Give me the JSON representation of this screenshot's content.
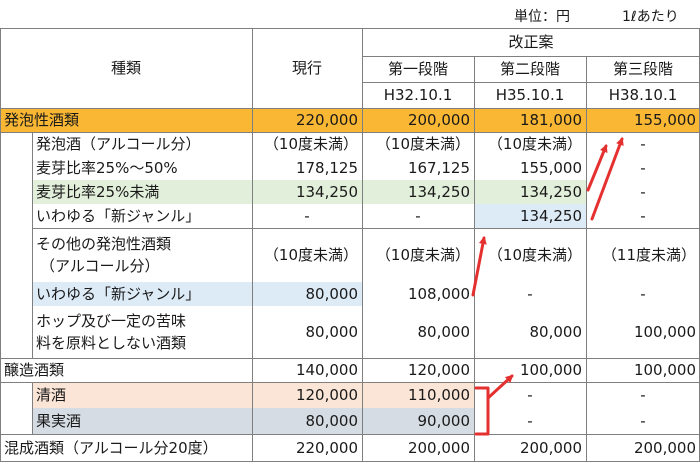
{
  "unit": {
    "label": "単位：円",
    "per": "1ℓあたり"
  },
  "header": {
    "type": "種類",
    "current": "現行",
    "proposal": "改正案",
    "stages": [
      "第一段階",
      "第二段階",
      "第三段階"
    ],
    "dates": [
      "H32.10.1",
      "H35.10.1",
      "H38.10.1"
    ]
  },
  "rows": {
    "happoseisyurui": {
      "name": "発泡性酒類",
      "v": [
        "220,000",
        "200,000",
        "181,000",
        "155,000"
      ]
    },
    "happoshu": {
      "name": "発泡酒（アルコール分）",
      "v": [
        "（10度未満）",
        "（10度未満）",
        "（10度未満）",
        "-"
      ]
    },
    "bakuga_25_50": {
      "name": "麦芽比率25%～50%",
      "v": [
        "178,125",
        "167,125",
        "155,000",
        "-"
      ]
    },
    "bakuga_under25": {
      "name": "麦芽比率25%未満",
      "v": [
        "134,250",
        "134,250",
        "134,250",
        "-"
      ]
    },
    "shin_genre_1": {
      "name": "いわゆる「新ジャンル」",
      "v": [
        "-",
        "-",
        "134,250",
        "-"
      ]
    },
    "sonota": {
      "name1": "その他の発泡性酒類",
      "name2": "（アルコール分）",
      "v": [
        "（10度未満）",
        "（10度未満）",
        "（10度未満）",
        "（11度未満）"
      ]
    },
    "shin_genre_2": {
      "name": "いわゆる「新ジャンル」",
      "v": [
        "80,000",
        "108,000",
        "-",
        "-"
      ]
    },
    "hop": {
      "name1": "ホップ及び一定の苦味",
      "name2": "料を原料としない酒類",
      "v": [
        "80,000",
        "80,000",
        "80,000",
        "100,000"
      ]
    },
    "jozo": {
      "name": "醸造酒類",
      "v": [
        "140,000",
        "120,000",
        "100,000",
        "100,000"
      ]
    },
    "seishu": {
      "name": "清酒",
      "v": [
        "120,000",
        "110,000",
        "-",
        "-"
      ]
    },
    "kajitsu": {
      "name": "果実酒",
      "v": [
        "80,000",
        "90,000",
        "-",
        "-"
      ]
    },
    "konsei": {
      "name": "混成酒類（アルコール分20度）",
      "v": [
        "220,000",
        "200,000",
        "200,000",
        "200,000"
      ]
    }
  },
  "colors": {
    "orange": "#f9b733",
    "green": "#e2efda",
    "blue": "#ddebf7",
    "pink": "#fbe5d6",
    "gray": "#d6dce4",
    "arrow": "#e53030"
  }
}
